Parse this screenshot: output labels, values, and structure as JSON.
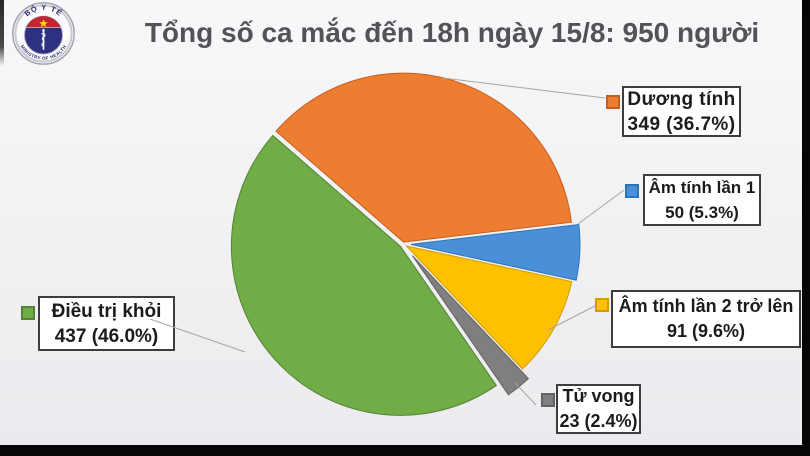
{
  "title": "Tổng số ca mắc đến 18h ngày 15/8: 950 người",
  "logo": {
    "top_text": "BỘ Y TẾ",
    "bottom_text": "MINISTRY OF HEALTH",
    "navy": "#2d3180",
    "red": "#c22731",
    "star": "#ffd500"
  },
  "chart_data": {
    "type": "pie",
    "title": "Tổng số ca mắc đến 18h ngày 15/8: 950 người",
    "total": 950,
    "legend_position": "callout-boxes",
    "slices": [
      {
        "label": "Dương tính",
        "value": 349,
        "pct": 36.7,
        "value_text": "349 (36.7%)",
        "color": "#ED7D31",
        "border": "#C65F1E"
      },
      {
        "label": "Âm tính lần 1",
        "value": 50,
        "pct": 5.3,
        "value_text": "50 (5.3%)",
        "color": "#4A90D8",
        "border": "#2E74B5"
      },
      {
        "label": "Âm tính lần 2 trở lên",
        "value": 91,
        "pct": 9.6,
        "value_text": "91 (9.6%)",
        "color": "#FFC000",
        "border": "#D09E00"
      },
      {
        "label": "Tử vong",
        "value": 23,
        "pct": 2.4,
        "value_text": "23 (2.4%)",
        "color": "#7F7F7F",
        "border": "#636363"
      },
      {
        "label": "Điều trị khỏi",
        "value": 437,
        "pct": 46.0,
        "value_text": "437 (46.0%)",
        "color": "#70AD47",
        "border": "#548235"
      }
    ]
  }
}
